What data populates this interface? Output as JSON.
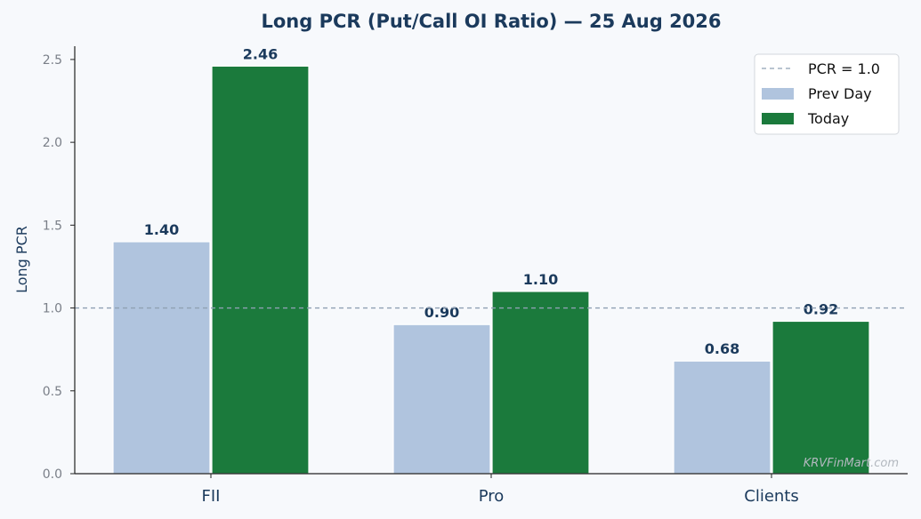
{
  "chart_data": {
    "type": "bar",
    "title": "Long PCR (Put/Call OI Ratio) — 25 Aug 2026",
    "xlabel": "",
    "ylabel": "Long PCR",
    "categories": [
      "FII",
      "Pro",
      "Clients"
    ],
    "series": [
      {
        "name": "Prev Day",
        "values": [
          1.4,
          0.9,
          0.68
        ],
        "labels": [
          "1.40",
          "0.90",
          "0.68"
        ],
        "color": "#b0c4de"
      },
      {
        "name": "Today",
        "values": [
          2.46,
          1.1,
          0.92
        ],
        "labels": [
          "2.46",
          "1.10",
          "0.92"
        ],
        "color": "#1b7a3c"
      }
    ],
    "yticks": [
      "0.0",
      "0.5",
      "1.0",
      "1.5",
      "2.0",
      "2.5"
    ],
    "ylim": [
      0,
      2.58
    ],
    "reference_line": {
      "value": 1.0,
      "label": "PCR = 1.0",
      "color": "#8fa0b3",
      "style": "dashed"
    },
    "grid": false,
    "legend_position": "top-right",
    "watermark": "KRVFinMart.com"
  }
}
